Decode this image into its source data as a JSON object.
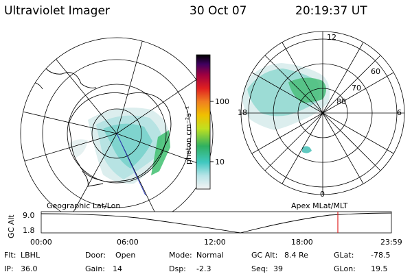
{
  "header": {
    "instrument": "Ultraviolet Imager",
    "date": "30 Oct 07",
    "time": "20:19:37 UT"
  },
  "colorbar": {
    "unit_label": "photon cm⁻²s⁻¹",
    "ticks": [
      "100",
      "10"
    ]
  },
  "left_map": {
    "caption": "Geographic Lat/Lon"
  },
  "right_map": {
    "caption": "Apex MLat/MLT",
    "mlt_labels": {
      "top": "12",
      "left": "18",
      "right": "6",
      "bottom": "0"
    },
    "lat_labels": [
      "60",
      "70",
      "80"
    ]
  },
  "alt_plot": {
    "ylabel": "GC Alt",
    "yticks": [
      "9.0",
      "1.8"
    ],
    "xticks": [
      "00:00",
      "06:00",
      "12:00",
      "18:00",
      "23:59"
    ]
  },
  "info": {
    "row1": [
      {
        "label": "Flt:",
        "value": "LBHL"
      },
      {
        "label": "Door:",
        "value": "Open"
      },
      {
        "label": "Mode:",
        "value": "Normal"
      },
      {
        "label": "GC Alt:",
        "value": "8.4 Re"
      },
      {
        "label": "GLat:",
        "value": "-78.5"
      }
    ],
    "row2": [
      {
        "label": "IP:",
        "value": "36.0"
      },
      {
        "label": "Gain:",
        "value": "14"
      },
      {
        "label": "Dsp:",
        "value": "-2.3"
      },
      {
        "label": "Seq:",
        "value": "39"
      },
      {
        "label": "GLon:",
        "value": "19.5"
      }
    ]
  },
  "colors": {
    "aurora_light": "#c8e8e0",
    "aurora_cyan": "#60c8c0",
    "aurora_green": "#40c070",
    "marker_red": "#e02020"
  }
}
